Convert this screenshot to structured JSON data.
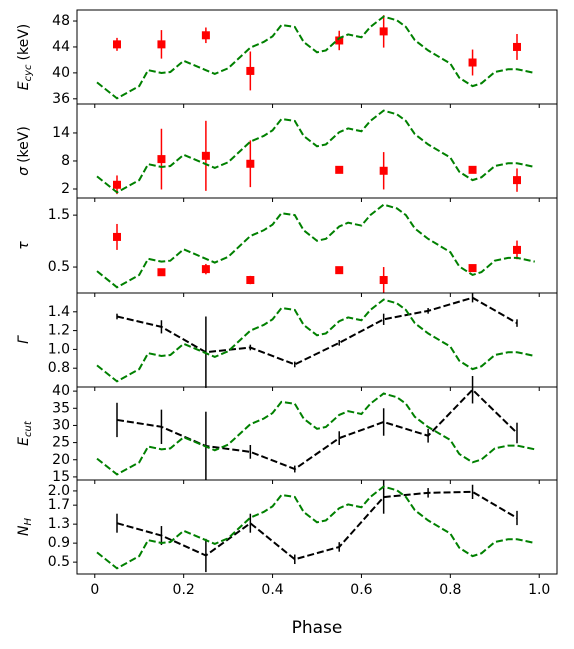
{
  "chart_data": [
    {
      "type": "scatter",
      "ylabel": {
        "main": "E",
        "sub": "cyc",
        "unit": "(keV)"
      },
      "xlim": [
        -0.04,
        1.04
      ],
      "ylim": [
        35.2,
        49.7
      ],
      "yticks": [
        36,
        40,
        44,
        48
      ],
      "y2lim": [
        0,
        1
      ],
      "series": [
        {
          "color": "#ff0000",
          "marker": "square",
          "linestyle": "none",
          "x": [
            0.05,
            0.15,
            0.25,
            0.35,
            0.55,
            0.65,
            0.85,
            0.95
          ],
          "values": [
            44.4,
            44.4,
            45.8,
            40.3,
            45.0,
            46.4,
            41.6,
            44.0
          ],
          "errors": [
            1.0,
            2.2,
            1.2,
            3.0,
            1.5,
            2.5,
            2.0,
            2.0
          ]
        },
        {
          "color": "#008000",
          "marker": "none",
          "linestyle": "dashed",
          "axis": "y2",
          "x": [
            0.005,
            0.05,
            0.1,
            0.12,
            0.15,
            0.17,
            0.2,
            0.25,
            0.27,
            0.3,
            0.35,
            0.38,
            0.4,
            0.42,
            0.45,
            0.47,
            0.5,
            0.52,
            0.55,
            0.57,
            0.6,
            0.62,
            0.65,
            0.68,
            0.7,
            0.72,
            0.75,
            0.8,
            0.82,
            0.85,
            0.87,
            0.9,
            0.93,
            0.95,
            0.99
          ],
          "values": [
            0.23,
            0.06,
            0.19,
            0.36,
            0.33,
            0.34,
            0.46,
            0.36,
            0.32,
            0.38,
            0.6,
            0.66,
            0.72,
            0.84,
            0.82,
            0.66,
            0.55,
            0.57,
            0.7,
            0.74,
            0.71,
            0.82,
            0.93,
            0.89,
            0.82,
            0.68,
            0.57,
            0.43,
            0.28,
            0.19,
            0.22,
            0.34,
            0.37,
            0.37,
            0.33
          ]
        }
      ]
    },
    {
      "type": "scatter",
      "ylabel": {
        "main": "σ",
        "unit": "(keV)"
      },
      "xlim": [
        -0.04,
        1.04
      ],
      "ylim": [
        0.07,
        20.2
      ],
      "yticks": [
        2,
        8,
        14
      ],
      "y2lim": [
        0,
        1
      ],
      "series": [
        {
          "color": "#ff0000",
          "marker": "square",
          "linestyle": "none",
          "x": [
            0.05,
            0.15,
            0.25,
            0.35,
            0.55,
            0.65,
            0.85,
            0.95
          ],
          "values": [
            2.9,
            8.4,
            9.1,
            7.4,
            6.1,
            5.9,
            6.1,
            3.9
          ],
          "errors": [
            2.0,
            6.5,
            7.5,
            5.0,
            0.5,
            4.0,
            0.5,
            2.5
          ]
        },
        {
          "color": "#008000",
          "marker": "none",
          "linestyle": "dashed",
          "axis": "y2",
          "x": [
            0.005,
            0.05,
            0.1,
            0.12,
            0.15,
            0.17,
            0.2,
            0.25,
            0.27,
            0.3,
            0.35,
            0.38,
            0.4,
            0.42,
            0.45,
            0.47,
            0.5,
            0.52,
            0.55,
            0.57,
            0.6,
            0.62,
            0.65,
            0.68,
            0.7,
            0.72,
            0.75,
            0.8,
            0.82,
            0.85,
            0.87,
            0.9,
            0.93,
            0.95,
            0.99
          ],
          "values": [
            0.23,
            0.06,
            0.19,
            0.36,
            0.33,
            0.34,
            0.46,
            0.36,
            0.32,
            0.38,
            0.6,
            0.66,
            0.72,
            0.84,
            0.82,
            0.66,
            0.55,
            0.57,
            0.7,
            0.74,
            0.71,
            0.82,
            0.93,
            0.89,
            0.82,
            0.68,
            0.57,
            0.43,
            0.28,
            0.19,
            0.22,
            0.34,
            0.37,
            0.37,
            0.33
          ]
        }
      ]
    },
    {
      "type": "scatter",
      "ylabel": {
        "main": "τ"
      },
      "xlim": [
        -0.04,
        1.04
      ],
      "ylim": [
        0.0,
        1.83
      ],
      "yticks": [
        0.5,
        1.5
      ],
      "y2lim": [
        0,
        1
      ],
      "series": [
        {
          "color": "#ff0000",
          "marker": "square",
          "linestyle": "none",
          "x": [
            0.05,
            0.15,
            0.25,
            0.35,
            0.55,
            0.65,
            0.85,
            0.95
          ],
          "values": [
            1.08,
            0.4,
            0.46,
            0.25,
            0.44,
            0.25,
            0.48,
            0.83
          ],
          "errors": [
            0.25,
            0.07,
            0.1,
            0.08,
            0.06,
            0.25,
            0.05,
            0.18
          ]
        },
        {
          "color": "#008000",
          "marker": "none",
          "linestyle": "dashed",
          "axis": "y2",
          "x": [
            0.005,
            0.05,
            0.1,
            0.12,
            0.15,
            0.17,
            0.2,
            0.25,
            0.27,
            0.3,
            0.35,
            0.38,
            0.4,
            0.42,
            0.45,
            0.47,
            0.5,
            0.52,
            0.55,
            0.57,
            0.6,
            0.62,
            0.65,
            0.68,
            0.7,
            0.72,
            0.75,
            0.8,
            0.82,
            0.85,
            0.87,
            0.9,
            0.93,
            0.95,
            0.99
          ],
          "values": [
            0.23,
            0.06,
            0.19,
            0.36,
            0.33,
            0.34,
            0.46,
            0.36,
            0.32,
            0.38,
            0.6,
            0.66,
            0.72,
            0.84,
            0.82,
            0.66,
            0.55,
            0.57,
            0.7,
            0.74,
            0.71,
            0.82,
            0.93,
            0.89,
            0.82,
            0.68,
            0.57,
            0.43,
            0.28,
            0.19,
            0.22,
            0.34,
            0.37,
            0.37,
            0.33
          ]
        }
      ]
    },
    {
      "type": "line",
      "ylabel": {
        "main": "Γ"
      },
      "xlim": [
        -0.04,
        1.04
      ],
      "ylim": [
        0.6,
        1.6
      ],
      "yticks": [
        0.8,
        {
          "value": 1,
          "label": "1.0"
        },
        1.2,
        1.4
      ],
      "y2lim": [
        0,
        1
      ],
      "series": [
        {
          "color": "#000000",
          "marker": "none",
          "linestyle": "dashed",
          "x": [
            0.05,
            0.15,
            0.25,
            0.35,
            0.45,
            0.55,
            0.65,
            0.75,
            0.85,
            0.95
          ],
          "values": [
            1.35,
            1.24,
            0.97,
            1.02,
            0.84,
            1.07,
            1.32,
            1.41,
            1.55,
            1.28
          ],
          "errors": [
            0.03,
            0.07,
            0.38,
            0.03,
            0.03,
            0.03,
            0.06,
            0.03,
            0.05,
            0.04
          ]
        },
        {
          "color": "#008000",
          "marker": "none",
          "linestyle": "dashed",
          "axis": "y2",
          "x": [
            0.005,
            0.05,
            0.1,
            0.12,
            0.15,
            0.17,
            0.2,
            0.25,
            0.27,
            0.3,
            0.35,
            0.38,
            0.4,
            0.42,
            0.45,
            0.47,
            0.5,
            0.52,
            0.55,
            0.57,
            0.6,
            0.62,
            0.65,
            0.68,
            0.7,
            0.72,
            0.75,
            0.8,
            0.82,
            0.85,
            0.87,
            0.9,
            0.93,
            0.95,
            0.99
          ],
          "values": [
            0.23,
            0.06,
            0.19,
            0.36,
            0.33,
            0.34,
            0.46,
            0.36,
            0.32,
            0.38,
            0.6,
            0.66,
            0.72,
            0.84,
            0.82,
            0.66,
            0.55,
            0.57,
            0.7,
            0.74,
            0.71,
            0.82,
            0.93,
            0.89,
            0.82,
            0.68,
            0.57,
            0.43,
            0.28,
            0.19,
            0.22,
            0.34,
            0.37,
            0.37,
            0.33
          ]
        }
      ]
    },
    {
      "type": "line",
      "ylabel": {
        "main": "E",
        "sub": "cut"
      },
      "xlim": [
        -0.04,
        1.04
      ],
      "ylim": [
        14.1,
        41.2
      ],
      "yticks": [
        15,
        20,
        25,
        30,
        35,
        40
      ],
      "y2lim": [
        0,
        1
      ],
      "series": [
        {
          "color": "#000000",
          "marker": "none",
          "linestyle": "dashed",
          "x": [
            0.05,
            0.15,
            0.25,
            0.35,
            0.45,
            0.55,
            0.65,
            0.75,
            0.85,
            0.95
          ],
          "values": [
            31.6,
            29.6,
            24.0,
            22.3,
            17.3,
            26.3,
            31.0,
            27.0,
            40.4,
            27.8
          ],
          "errors": [
            5,
            5,
            10,
            2,
            1,
            2,
            4,
            2,
            4,
            3
          ]
        },
        {
          "color": "#008000",
          "marker": "none",
          "linestyle": "dashed",
          "axis": "y2",
          "x": [
            0.005,
            0.05,
            0.1,
            0.12,
            0.15,
            0.17,
            0.2,
            0.25,
            0.27,
            0.3,
            0.35,
            0.38,
            0.4,
            0.42,
            0.45,
            0.47,
            0.5,
            0.52,
            0.55,
            0.57,
            0.6,
            0.62,
            0.65,
            0.68,
            0.7,
            0.72,
            0.75,
            0.8,
            0.82,
            0.85,
            0.87,
            0.9,
            0.93,
            0.95,
            0.99
          ],
          "values": [
            0.23,
            0.06,
            0.19,
            0.36,
            0.33,
            0.34,
            0.46,
            0.36,
            0.32,
            0.38,
            0.6,
            0.66,
            0.72,
            0.84,
            0.82,
            0.66,
            0.55,
            0.57,
            0.7,
            0.74,
            0.71,
            0.82,
            0.93,
            0.89,
            0.82,
            0.68,
            0.57,
            0.43,
            0.28,
            0.19,
            0.22,
            0.34,
            0.37,
            0.37,
            0.33
          ]
        }
      ]
    },
    {
      "type": "line",
      "ylabel": {
        "main": "N",
        "sub": "H"
      },
      "xlabel": "Phase",
      "xlim": [
        -0.04,
        1.04
      ],
      "xticks": [
        0,
        0.2,
        0.4,
        0.6,
        0.8,
        {
          "value": 1,
          "label": "1.0"
        }
      ],
      "ylim": [
        0.25,
        2.23
      ],
      "yticks": [
        0.5,
        0.9,
        1.3,
        1.7,
        {
          "value": 2,
          "label": "2.0"
        }
      ],
      "y2lim": [
        0,
        1
      ],
      "series": [
        {
          "color": "#000000",
          "marker": "none",
          "linestyle": "dashed",
          "x": [
            0.05,
            0.15,
            0.25,
            0.35,
            0.45,
            0.55,
            0.65,
            0.75,
            0.85,
            0.95
          ],
          "values": [
            1.32,
            1.06,
            0.64,
            1.32,
            0.56,
            0.82,
            1.87,
            1.96,
            1.98,
            1.43
          ],
          "errors": [
            0.2,
            0.2,
            0.35,
            0.2,
            0.1,
            0.1,
            0.35,
            0.1,
            0.15,
            0.15
          ]
        },
        {
          "color": "#008000",
          "marker": "none",
          "linestyle": "dashed",
          "axis": "y2",
          "x": [
            0.005,
            0.05,
            0.1,
            0.12,
            0.15,
            0.17,
            0.2,
            0.25,
            0.27,
            0.3,
            0.35,
            0.38,
            0.4,
            0.42,
            0.45,
            0.47,
            0.5,
            0.52,
            0.55,
            0.57,
            0.6,
            0.62,
            0.65,
            0.68,
            0.7,
            0.72,
            0.75,
            0.8,
            0.82,
            0.85,
            0.87,
            0.9,
            0.93,
            0.95,
            0.99
          ],
          "values": [
            0.23,
            0.06,
            0.19,
            0.36,
            0.33,
            0.34,
            0.46,
            0.36,
            0.32,
            0.38,
            0.6,
            0.66,
            0.72,
            0.84,
            0.82,
            0.66,
            0.55,
            0.57,
            0.7,
            0.74,
            0.71,
            0.82,
            0.93,
            0.89,
            0.82,
            0.68,
            0.57,
            0.43,
            0.28,
            0.19,
            0.22,
            0.34,
            0.37,
            0.37,
            0.33
          ]
        }
      ]
    }
  ]
}
